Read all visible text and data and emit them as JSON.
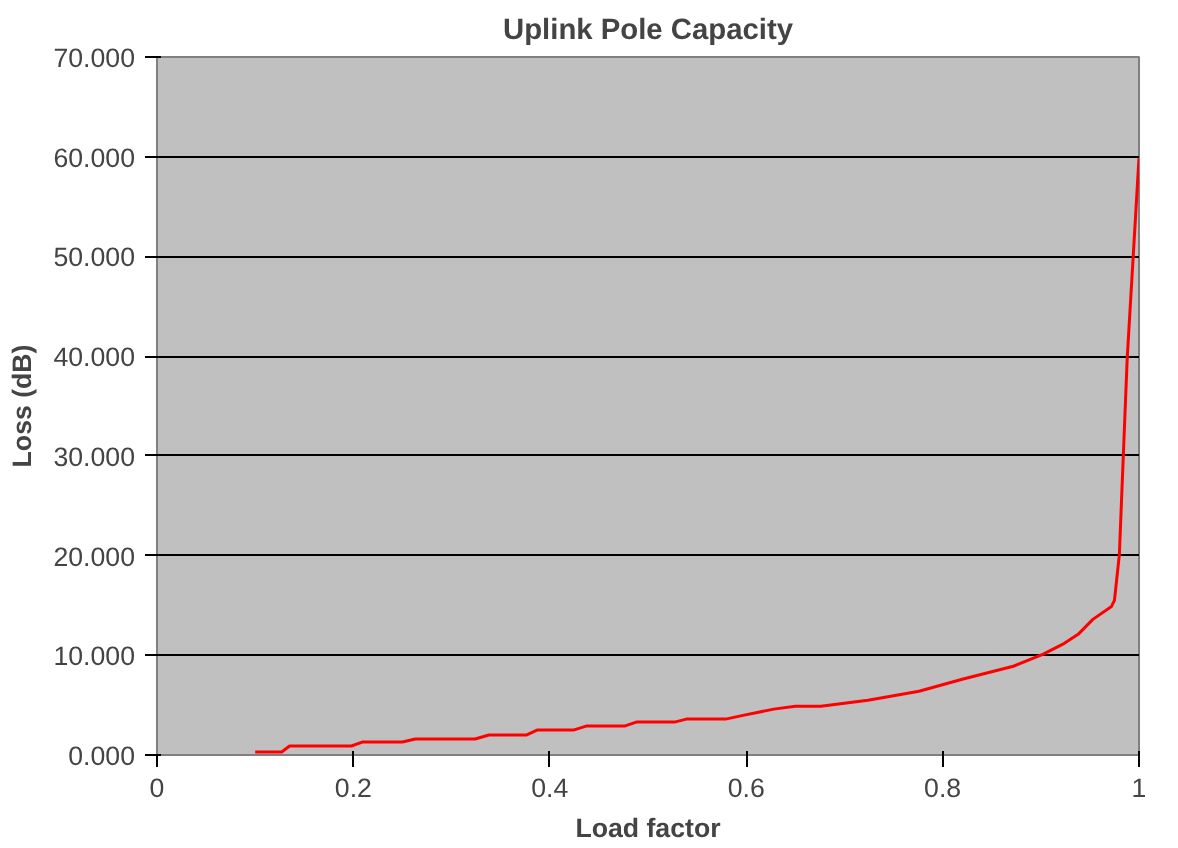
{
  "chart_data": {
    "type": "line",
    "title": "Uplink Pole Capacity",
    "xlabel": "Load factor",
    "ylabel": "Loss (dB)",
    "xlim": [
      0,
      1
    ],
    "xticks": [
      0,
      0.2,
      0.4,
      0.6,
      0.8,
      1
    ],
    "ylim": [
      0,
      70
    ],
    "yticks": [
      {
        "value": 0,
        "label": "0.000"
      },
      {
        "value": 10,
        "label": "10.000"
      },
      {
        "value": 20,
        "label": "20.000"
      },
      {
        "value": 30,
        "label": "30.000"
      },
      {
        "value": 40,
        "label": "40.000"
      },
      {
        "value": 50,
        "label": "50.000"
      },
      {
        "value": 60,
        "label": "60.000"
      },
      {
        "value": 70,
        "label": "70.000"
      }
    ],
    "grid": "y",
    "marker": "none",
    "line_style": "solid",
    "x": [
      0.1,
      0.127,
      0.135,
      0.198,
      0.209,
      0.25,
      0.263,
      0.324,
      0.338,
      0.376,
      0.387,
      0.424,
      0.437,
      0.476,
      0.488,
      0.527,
      0.539,
      0.579,
      0.598,
      0.628,
      0.65,
      0.676,
      0.724,
      0.776,
      0.82,
      0.872,
      0.902,
      0.924,
      0.938,
      0.953,
      0.972,
      0.975,
      0.98,
      0.988,
      1.0
    ],
    "series": [
      {
        "color": "#ff0000",
        "values": [
          0.3,
          0.3,
          0.9,
          0.9,
          1.3,
          1.3,
          1.6,
          1.6,
          2.0,
          2.0,
          2.5,
          2.5,
          2.9,
          2.9,
          3.3,
          3.3,
          3.6,
          3.6,
          4.0,
          4.6,
          4.9,
          4.9,
          5.5,
          6.4,
          7.6,
          8.9,
          10.1,
          11.2,
          12.1,
          13.6,
          14.9,
          15.5,
          20.1,
          39.8,
          59.9
        ]
      }
    ]
  }
}
